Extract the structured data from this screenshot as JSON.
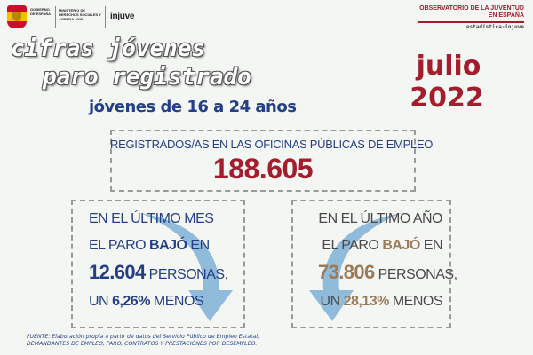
{
  "header": {
    "gov_label": "Gobierno de España",
    "ministry_label": "Ministerio de Derechos Sociales y Agenda 2030",
    "injuve_logo": "injuve",
    "observatorio_title": "Observatorio de la Juventud en España",
    "observatorio_sub": "estadística-injuve"
  },
  "title": {
    "line1": "cifras jóvenes",
    "line2": "paro registrado",
    "subtitle": "jóvenes de 16 a 24 años",
    "month": "julio",
    "year": "2022"
  },
  "center": {
    "label": "REGISTRADOS/AS EN LAS OFICINAS PÚBLICAS DE EMPLEO",
    "value": "188.605"
  },
  "left_panel": {
    "line1": "EN EL ÚLTIMO MES",
    "line2_prefix": "EL PARO ",
    "line2_bold": "BAJÓ",
    "line2_suffix": " EN",
    "number": "12.604",
    "number_suffix": " PERSONAS,",
    "line4_prefix": "UN ",
    "percent": "6,26%",
    "line4_suffix": " MENOS"
  },
  "right_panel": {
    "line1": "EN EL ÚLTIMO AÑO",
    "line2_prefix": "EL PARO ",
    "line2_bold": "BAJÓ",
    "line2_suffix": " EN",
    "number": "73.806",
    "number_suffix": " PERSONAS,",
    "line4_prefix": "UN ",
    "percent": "28,13%",
    "line4_suffix": " MENOS"
  },
  "footer": {
    "line1": "FUENTE: Elaboración propia a partir de datos del Servicio Público de Empleo Estatal,",
    "line2": "DEMANDANTES DE EMPLEO, PARO, CONTRATOS Y PRESTACIONES POR DESEMPLEO."
  },
  "colors": {
    "brand_red": "#a31d2c",
    "brand_blue": "#243f86",
    "accent_brown": "#9c7a58",
    "arrow_blue": "#7fb0d6"
  }
}
